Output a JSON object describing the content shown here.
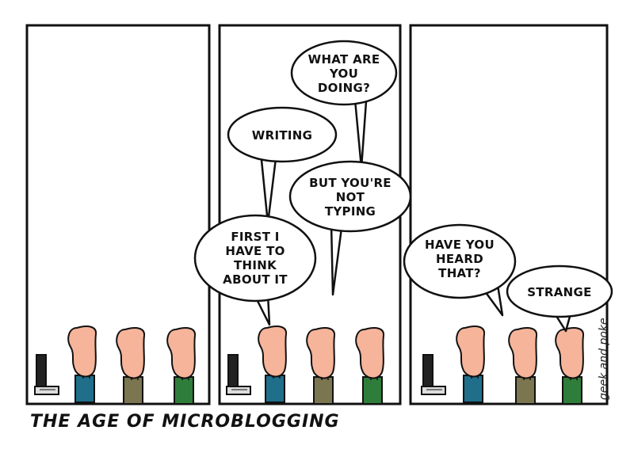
{
  "comic": {
    "title": "THE AGE OF MICROBLOGGING",
    "signature": "geek and poke",
    "panels": [
      {
        "bubbles": []
      },
      {
        "bubbles": [
          {
            "lines": [
              "WHAT ARE",
              "YOU",
              "DOING?"
            ]
          },
          {
            "lines": [
              "WRITING"
            ]
          },
          {
            "lines": [
              "BUT YOU'RE",
              "NOT",
              "TYPING"
            ]
          },
          {
            "lines": [
              "FIRST I",
              "HAVE TO",
              "THINK",
              "ABOUT IT"
            ]
          }
        ]
      },
      {
        "bubbles": [
          {
            "lines": [
              "HAVE YOU",
              "HEARD",
              "THAT?"
            ]
          },
          {
            "lines": [
              "STRANGE"
            ]
          }
        ]
      }
    ]
  },
  "colors": {
    "skin": "#f6b49a",
    "shirt_teal": "#1f6f8b",
    "shirt_khaki": "#7b7650",
    "shirt_green": "#2f7d3a",
    "outline": "#111111",
    "screen": "#222222",
    "keyboard": "#dddddd"
  }
}
